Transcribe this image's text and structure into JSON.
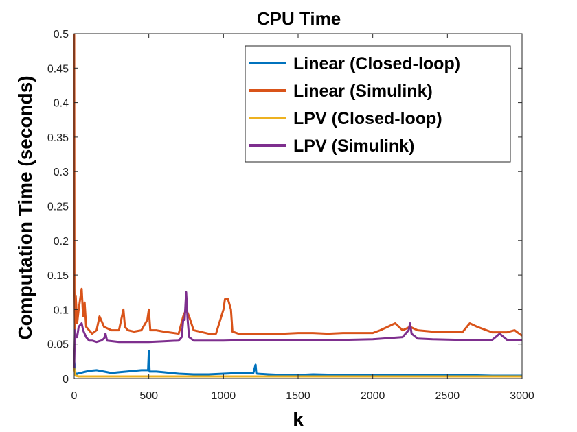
{
  "chart_data": {
    "type": "line",
    "title": "CPU Time",
    "xlabel": "k",
    "ylabel": "Computation Time (seconds)",
    "xlim": [
      0,
      3000
    ],
    "ylim": [
      0,
      0.5
    ],
    "xticks": [
      0,
      500,
      1000,
      1500,
      2000,
      2500,
      3000
    ],
    "xtick_labels": [
      "0",
      "500",
      "1000",
      "1500",
      "2000",
      "2500",
      "3000"
    ],
    "yticks": [
      0,
      0.05,
      0.1,
      0.15,
      0.2,
      0.25,
      0.3,
      0.35,
      0.4,
      0.45,
      0.5
    ],
    "ytick_labels": [
      "0",
      "0.05",
      "0.1",
      "0.15",
      "0.2",
      "0.25",
      "0.3",
      "0.35",
      "0.4",
      "0.45",
      "0.5"
    ],
    "grid": false,
    "legend_position": "top-right",
    "series": [
      {
        "name": "Linear (Closed-loop)",
        "color": "#0072BD",
        "x": [
          0,
          5,
          10,
          20,
          40,
          60,
          80,
          100,
          150,
          200,
          250,
          300,
          350,
          400,
          450,
          495,
          500,
          505,
          550,
          600,
          650,
          700,
          800,
          900,
          1000,
          1100,
          1200,
          1215,
          1220,
          1225,
          1300,
          1400,
          1500,
          1600,
          1800,
          2000,
          2200,
          2400,
          2500,
          2600,
          2800,
          3000
        ],
        "y": [
          0.025,
          0.015,
          0.005,
          0.007,
          0.008,
          0.009,
          0.01,
          0.011,
          0.012,
          0.01,
          0.008,
          0.009,
          0.01,
          0.011,
          0.012,
          0.012,
          0.04,
          0.01,
          0.01,
          0.009,
          0.008,
          0.007,
          0.006,
          0.006,
          0.007,
          0.008,
          0.008,
          0.02,
          0.008,
          0.007,
          0.006,
          0.005,
          0.005,
          0.006,
          0.005,
          0.005,
          0.005,
          0.005,
          0.005,
          0.005,
          0.004,
          0.004
        ]
      },
      {
        "name": "Linear (Simulink)",
        "color": "#D95319",
        "x": [
          0,
          2,
          5,
          10,
          20,
          30,
          50,
          60,
          70,
          80,
          100,
          120,
          150,
          170,
          200,
          250,
          300,
          330,
          340,
          360,
          400,
          450,
          490,
          500,
          510,
          550,
          600,
          700,
          730,
          750,
          770,
          800,
          900,
          950,
          1000,
          1010,
          1030,
          1050,
          1060,
          1100,
          1200,
          1300,
          1400,
          1500,
          1600,
          1700,
          1800,
          1900,
          2000,
          2050,
          2100,
          2150,
          2200,
          2250,
          2300,
          2400,
          2500,
          2600,
          2650,
          2700,
          2800,
          2900,
          2950,
          3000
        ],
        "y": [
          0.5,
          0.13,
          0.07,
          0.12,
          0.08,
          0.1,
          0.13,
          0.09,
          0.11,
          0.075,
          0.07,
          0.065,
          0.07,
          0.09,
          0.075,
          0.07,
          0.07,
          0.1,
          0.075,
          0.07,
          0.068,
          0.07,
          0.085,
          0.1,
          0.07,
          0.07,
          0.068,
          0.065,
          0.09,
          0.1,
          0.09,
          0.07,
          0.065,
          0.065,
          0.1,
          0.115,
          0.115,
          0.1,
          0.068,
          0.065,
          0.065,
          0.065,
          0.065,
          0.066,
          0.066,
          0.065,
          0.066,
          0.066,
          0.066,
          0.07,
          0.075,
          0.08,
          0.07,
          0.075,
          0.07,
          0.068,
          0.068,
          0.067,
          0.08,
          0.075,
          0.067,
          0.067,
          0.07,
          0.062
        ]
      },
      {
        "name": "LPV (Closed-loop)",
        "color": "#EDB120",
        "x": [
          0,
          5,
          10,
          30,
          100,
          200,
          300,
          400,
          500,
          600,
          800,
          1000,
          1200,
          1500,
          2000,
          2500,
          3000
        ],
        "y": [
          0.015,
          0.008,
          0.004,
          0.003,
          0.003,
          0.003,
          0.003,
          0.003,
          0.003,
          0.003,
          0.003,
          0.003,
          0.003,
          0.003,
          0.003,
          0.003,
          0.003
        ]
      },
      {
        "name": "LPV (Simulink)",
        "color": "#7E2F8E",
        "x": [
          0,
          5,
          10,
          20,
          30,
          50,
          60,
          70,
          80,
          100,
          120,
          150,
          180,
          200,
          210,
          220,
          300,
          400,
          500,
          600,
          700,
          720,
          730,
          740,
          750,
          760,
          770,
          800,
          900,
          1000,
          1200,
          1500,
          1800,
          2000,
          2200,
          2240,
          2250,
          2260,
          2300,
          2400,
          2600,
          2800,
          2850,
          2900,
          3000
        ],
        "y": [
          0.015,
          0.07,
          0.06,
          0.06,
          0.075,
          0.08,
          0.07,
          0.065,
          0.06,
          0.055,
          0.055,
          0.053,
          0.055,
          0.058,
          0.065,
          0.055,
          0.053,
          0.053,
          0.053,
          0.054,
          0.055,
          0.06,
          0.085,
          0.085,
          0.125,
          0.085,
          0.06,
          0.055,
          0.055,
          0.055,
          0.056,
          0.056,
          0.056,
          0.057,
          0.06,
          0.07,
          0.08,
          0.065,
          0.058,
          0.057,
          0.056,
          0.056,
          0.065,
          0.056,
          0.056
        ]
      }
    ]
  }
}
